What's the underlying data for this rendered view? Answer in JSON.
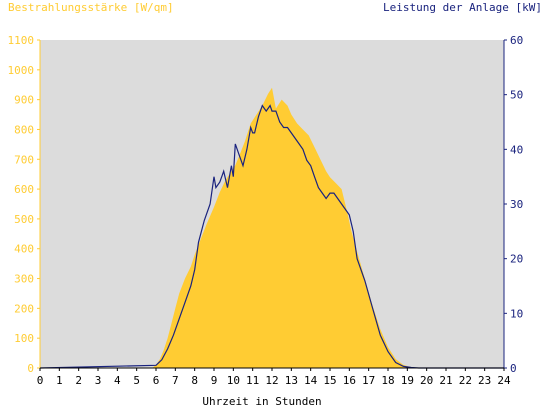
{
  "chart_data": {
    "type": "area",
    "title_left": "Bestrahlungsstärke [W/qm]",
    "title_right": "Leistung der Anlage [kW]",
    "xlabel": "Uhrzeit in Stunden",
    "xlim": [
      0,
      24
    ],
    "ylim_left": [
      0,
      1100
    ],
    "ylim_right": [
      0,
      60
    ],
    "x_ticks": [
      "0",
      "1",
      "2",
      "3",
      "4",
      "5",
      "6",
      "7",
      "8",
      "9",
      "10",
      "11",
      "12",
      "13",
      "14",
      "15",
      "16",
      "17",
      "18",
      "19",
      "20",
      "21",
      "22",
      "23",
      "24"
    ],
    "y_left_ticks": [
      "0",
      "100",
      "200",
      "300",
      "400",
      "500",
      "600",
      "700",
      "800",
      "900",
      "1000",
      "1100"
    ],
    "y_right_ticks": [
      "0",
      "10",
      "20",
      "30",
      "40",
      "50",
      "60"
    ],
    "grid": false,
    "colors": {
      "plot_bg": "#dcdcdc",
      "irradiance": "#ffcc33",
      "power": "#1a237e",
      "x_axis": "#000000"
    },
    "series": [
      {
        "axis": "left",
        "style": "filled-area",
        "x": [
          0,
          5.8,
          6.0,
          6.2,
          6.4,
          6.6,
          6.8,
          7.0,
          7.2,
          7.5,
          7.8,
          8.0,
          8.3,
          8.6,
          9.0,
          9.3,
          9.6,
          9.9,
          10.1,
          10.3,
          10.6,
          10.9,
          11.2,
          11.5,
          11.8,
          12.0,
          12.2,
          12.5,
          12.8,
          13.0,
          13.3,
          13.6,
          13.9,
          14.2,
          14.5,
          14.8,
          15.0,
          15.3,
          15.6,
          15.9,
          16.1,
          16.4,
          16.8,
          17.2,
          17.6,
          18.0,
          18.4,
          18.8,
          19.2,
          19.5,
          24
        ],
        "y": [
          0,
          0,
          10,
          30,
          60,
          100,
          150,
          200,
          250,
          300,
          340,
          380,
          430,
          480,
          540,
          590,
          630,
          660,
          680,
          710,
          760,
          820,
          850,
          880,
          920,
          940,
          870,
          900,
          880,
          850,
          820,
          800,
          780,
          740,
          700,
          660,
          640,
          620,
          600,
          520,
          460,
          390,
          300,
          210,
          130,
          70,
          30,
          10,
          3,
          0,
          0
        ]
      },
      {
        "axis": "right",
        "style": "line",
        "x": [
          0,
          6.0,
          6.3,
          6.6,
          6.9,
          7.2,
          7.5,
          7.8,
          8.0,
          8.2,
          8.5,
          8.8,
          9.0,
          9.1,
          9.3,
          9.5,
          9.7,
          9.9,
          10.0,
          10.1,
          10.3,
          10.5,
          10.7,
          10.9,
          11.0,
          11.1,
          11.3,
          11.5,
          11.7,
          11.9,
          12.0,
          12.2,
          12.4,
          12.6,
          12.8,
          13.0,
          13.2,
          13.4,
          13.6,
          13.8,
          14.0,
          14.2,
          14.4,
          14.6,
          14.8,
          15.0,
          15.2,
          15.4,
          15.6,
          15.8,
          16.0,
          16.2,
          16.4,
          16.8,
          17.2,
          17.6,
          18.0,
          18.4,
          18.8,
          19.2,
          19.6,
          24
        ],
        "y": [
          0,
          0.5,
          1.5,
          3.5,
          6,
          9,
          12,
          15,
          18,
          23,
          27,
          30,
          35,
          33,
          34,
          36,
          33,
          37,
          35,
          41,
          39,
          37,
          40,
          44,
          43,
          43,
          46,
          48,
          47,
          48,
          47,
          47,
          45,
          44,
          44,
          43,
          42,
          41,
          40,
          38,
          37,
          35,
          33,
          32,
          31,
          32,
          32,
          31,
          30,
          29,
          28,
          25,
          20,
          16,
          11,
          6,
          3,
          1,
          0.3,
          0.1,
          0,
          0
        ]
      }
    ]
  }
}
